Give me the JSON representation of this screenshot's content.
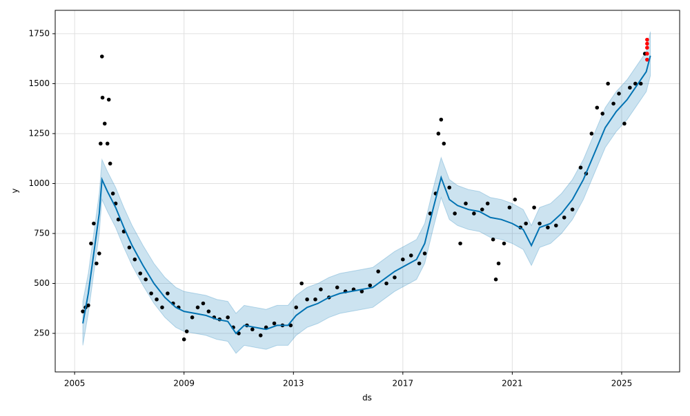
{
  "chart_data": {
    "type": "forecast",
    "x_label": "ds",
    "y_label": "y",
    "xlim": [
      2004.29,
      2027.12
    ],
    "ylim": [
      57,
      1867
    ],
    "xticks": [
      2005,
      2009,
      2013,
      2017,
      2021,
      2025
    ],
    "yticks": [
      250,
      500,
      750,
      1000,
      1250,
      1500,
      1750
    ],
    "grid": true,
    "forecast": {
      "color": "#0072b2",
      "band_color": "#0072b2",
      "x": [
        2005.3,
        2005.5,
        2005.7,
        2005.9,
        2006.0,
        2006.2,
        2006.5,
        2006.8,
        2007.1,
        2007.5,
        2007.9,
        2008.3,
        2008.7,
        2009.0,
        2009.4,
        2009.8,
        2010.2,
        2010.6,
        2010.9,
        2011.2,
        2011.6,
        2012.0,
        2012.4,
        2012.8,
        2013.1,
        2013.5,
        2013.9,
        2014.3,
        2014.7,
        2015.1,
        2015.5,
        2015.9,
        2016.3,
        2016.7,
        2017.1,
        2017.5,
        2017.8,
        2018.1,
        2018.4,
        2018.7,
        2019.0,
        2019.4,
        2019.8,
        2020.2,
        2020.6,
        2021.0,
        2021.4,
        2021.7,
        2022.0,
        2022.4,
        2022.8,
        2023.2,
        2023.6,
        2024.0,
        2024.4,
        2024.8,
        2025.2,
        2025.6,
        2025.9,
        2026.05
      ],
      "yhat": [
        300,
        450,
        650,
        850,
        1020,
        960,
        880,
        780,
        690,
        590,
        500,
        430,
        380,
        360,
        350,
        340,
        320,
        310,
        250,
        290,
        280,
        270,
        290,
        290,
        340,
        380,
        400,
        430,
        450,
        460,
        470,
        480,
        520,
        560,
        590,
        620,
        700,
        870,
        1030,
        920,
        890,
        870,
        860,
        830,
        820,
        800,
        770,
        690,
        780,
        800,
        850,
        920,
        1020,
        1150,
        1280,
        1360,
        1420,
        1500,
        1560,
        1640
      ],
      "lower": [
        190,
        350,
        550,
        750,
        920,
        860,
        780,
        680,
        590,
        490,
        400,
        330,
        280,
        260,
        250,
        240,
        220,
        210,
        150,
        190,
        180,
        170,
        190,
        190,
        240,
        280,
        300,
        330,
        350,
        360,
        370,
        380,
        420,
        460,
        490,
        520,
        600,
        770,
        930,
        820,
        790,
        770,
        760,
        730,
        720,
        700,
        670,
        590,
        680,
        700,
        750,
        820,
        920,
        1050,
        1180,
        1260,
        1320,
        1400,
        1460,
        1540
      ],
      "upper": [
        410,
        550,
        750,
        950,
        1120,
        1060,
        980,
        880,
        790,
        690,
        600,
        530,
        480,
        460,
        450,
        440,
        420,
        410,
        350,
        390,
        380,
        370,
        390,
        390,
        440,
        480,
        500,
        530,
        550,
        560,
        570,
        580,
        620,
        660,
        690,
        720,
        800,
        970,
        1130,
        1020,
        990,
        970,
        960,
        930,
        920,
        900,
        870,
        790,
        880,
        900,
        950,
        1020,
        1120,
        1250,
        1380,
        1460,
        1520,
        1600,
        1660,
        1760
      ]
    },
    "observed": {
      "color": "#000000",
      "x": [
        2005.3,
        2005.4,
        2005.5,
        2005.6,
        2005.7,
        2005.8,
        2005.9,
        2005.95,
        2006.0,
        2006.02,
        2006.1,
        2006.2,
        2006.25,
        2006.3,
        2006.4,
        2006.5,
        2006.6,
        2006.8,
        2007.0,
        2007.2,
        2007.4,
        2007.6,
        2007.8,
        2008.0,
        2008.2,
        2008.4,
        2008.6,
        2008.8,
        2009.0,
        2009.1,
        2009.3,
        2009.5,
        2009.7,
        2009.9,
        2010.1,
        2010.3,
        2010.6,
        2010.8,
        2011.0,
        2011.3,
        2011.5,
        2011.8,
        2012.0,
        2012.3,
        2012.6,
        2012.9,
        2013.1,
        2013.3,
        2013.5,
        2013.8,
        2014.0,
        2014.3,
        2014.6,
        2014.9,
        2015.2,
        2015.5,
        2015.8,
        2016.1,
        2016.4,
        2016.7,
        2017.0,
        2017.3,
        2017.6,
        2017.8,
        2018.0,
        2018.2,
        2018.3,
        2018.4,
        2018.5,
        2018.7,
        2018.9,
        2019.1,
        2019.3,
        2019.6,
        2019.9,
        2020.1,
        2020.3,
        2020.4,
        2020.5,
        2020.7,
        2020.9,
        2021.1,
        2021.3,
        2021.5,
        2021.8,
        2022.0,
        2022.3,
        2022.6,
        2022.9,
        2023.2,
        2023.5,
        2023.7,
        2023.9,
        2024.1,
        2024.3,
        2024.5,
        2024.7,
        2024.9,
        2025.1,
        2025.3,
        2025.5,
        2025.7,
        2025.85
      ],
      "y": [
        360,
        380,
        390,
        700,
        800,
        600,
        650,
        1200,
        1636,
        1430,
        1300,
        1200,
        1420,
        1100,
        950,
        900,
        820,
        760,
        680,
        620,
        550,
        520,
        450,
        420,
        380,
        450,
        400,
        380,
        220,
        260,
        330,
        380,
        400,
        360,
        330,
        320,
        330,
        280,
        250,
        290,
        270,
        240,
        280,
        300,
        290,
        290,
        380,
        500,
        420,
        420,
        470,
        430,
        480,
        460,
        470,
        460,
        490,
        560,
        500,
        530,
        620,
        640,
        600,
        650,
        850,
        950,
        1250,
        1320,
        1200,
        980,
        850,
        700,
        900,
        850,
        870,
        900,
        720,
        520,
        600,
        700,
        880,
        920,
        780,
        800,
        880,
        800,
        780,
        790,
        830,
        870,
        1080,
        1050,
        1250,
        1380,
        1350,
        1500,
        1400,
        1450,
        1300,
        1480,
        1500,
        1500,
        1650
      ]
    },
    "recent": {
      "color": "#ff0000",
      "x": [
        2025.93,
        2025.93,
        2025.93,
        2025.93,
        2025.93
      ],
      "y": [
        1620,
        1650,
        1680,
        1700,
        1720
      ]
    }
  }
}
